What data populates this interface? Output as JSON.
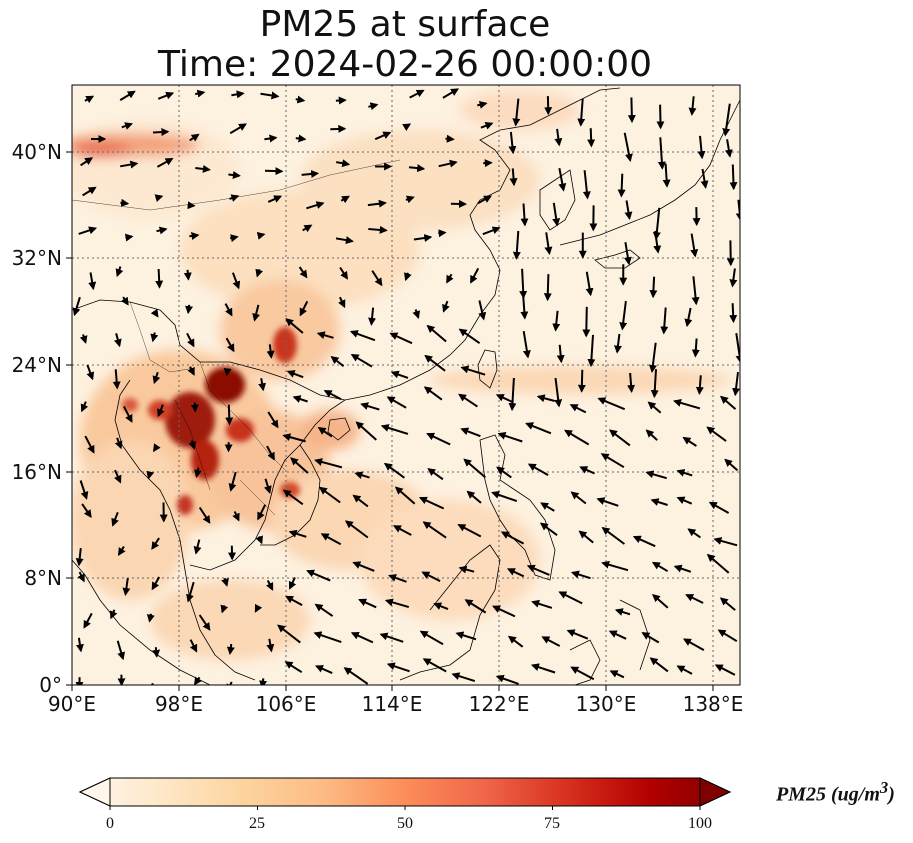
{
  "title": {
    "line1": "PM25 at surface",
    "line2": "Time: 2024-02-26 00:00:00"
  },
  "map": {
    "lon_range": [
      90,
      140
    ],
    "lat_range": [
      0,
      45
    ],
    "lat_ticks": [
      {
        "value": 40,
        "label": "40°N"
      },
      {
        "value": 32,
        "label": "32°N"
      },
      {
        "value": 24,
        "label": "24°N"
      },
      {
        "value": 16,
        "label": "16°N"
      },
      {
        "value": 8,
        "label": "8°N"
      },
      {
        "value": 0,
        "label": "0°"
      }
    ],
    "lon_ticks": [
      {
        "value": 90,
        "label": "90°E"
      },
      {
        "value": 98,
        "label": "98°E"
      },
      {
        "value": 106,
        "label": "106°E"
      },
      {
        "value": 114,
        "label": "114°E"
      },
      {
        "value": 122,
        "label": "122°E"
      },
      {
        "value": 130,
        "label": "130°E"
      },
      {
        "value": 138,
        "label": "138°E"
      }
    ],
    "gridlines": true,
    "field_variable": "PM25",
    "wind_vectors": true
  },
  "colorbar": {
    "label": "PM25 (ug/m",
    "label_sup": "3",
    "label_close": ")",
    "ticks": [
      "0",
      "25",
      "50",
      "75",
      "100"
    ],
    "range": [
      0,
      100
    ],
    "extend": "both",
    "colormap": "OrRd",
    "colors": [
      "#fff7ec",
      "#fee8c8",
      "#fdd49e",
      "#fdbb84",
      "#fc8d59",
      "#ef6548",
      "#d7301f",
      "#b30000",
      "#7f0000"
    ]
  }
}
